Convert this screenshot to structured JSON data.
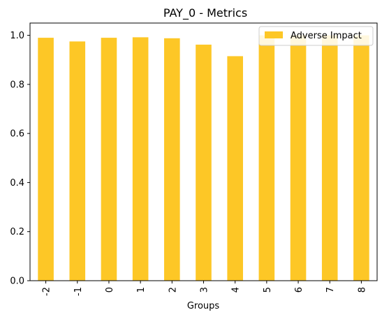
{
  "chart_data": {
    "type": "bar",
    "title": "PAY_0 - Metrics",
    "xlabel": "Groups",
    "ylabel": "",
    "categories": [
      "-2",
      "-1",
      "0",
      "1",
      "2",
      "3",
      "4",
      "5",
      "6",
      "7",
      "8"
    ],
    "series": [
      {
        "name": "Adverse Impact",
        "color": "#fdc726",
        "values": [
          0.99,
          0.975,
          0.99,
          0.992,
          0.988,
          0.962,
          0.915,
          1.0,
          1.0,
          1.0,
          1.0
        ]
      }
    ],
    "ylim": [
      0,
      1.05
    ],
    "yticks": [
      "0.0",
      "0.2",
      "0.4",
      "0.6",
      "0.8",
      "1.0"
    ],
    "grid": false,
    "legend_position": "top-right"
  }
}
